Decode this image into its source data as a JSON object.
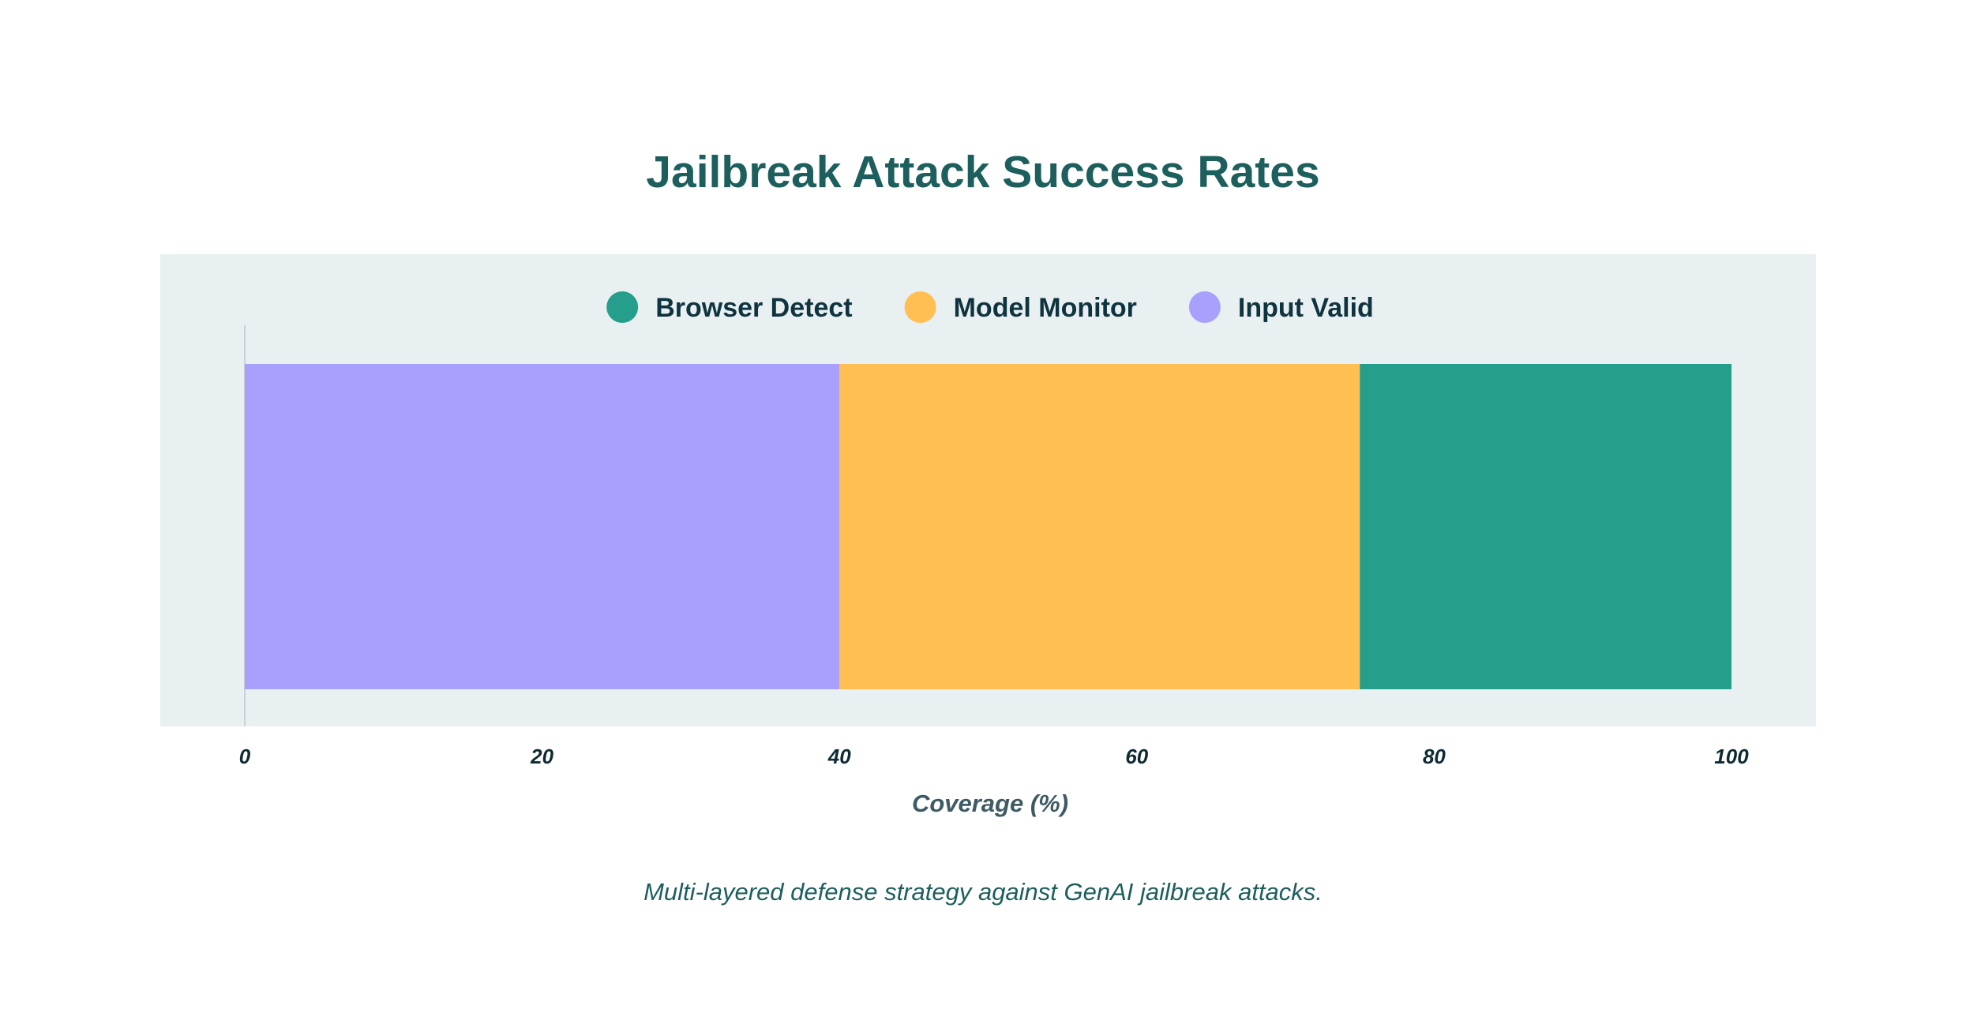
{
  "colors": {
    "title": "#1c5f5c",
    "caption": "#1c5f5c",
    "panel_bg": "#e9f0f1",
    "axis_line": "#c9d2d6",
    "legend_text": "#0f3440",
    "tick_text": "#0f2a33",
    "axis_title": "#3e5a63"
  },
  "caption": "Multi-layered defense strategy against GenAI jailbreak attacks.",
  "chart_data": {
    "type": "bar",
    "orientation": "horizontal",
    "stacked": true,
    "title": "Jailbreak Attack Success Rates",
    "xlabel": "Coverage (%)",
    "ylabel": "",
    "xlim": [
      0,
      100
    ],
    "xticks": [
      0,
      20,
      40,
      60,
      80,
      100
    ],
    "grid": false,
    "legend_position": "top",
    "categories": [
      ""
    ],
    "series": [
      {
        "name": "Input Valid",
        "values": [
          40
        ],
        "color": "#a99ffc"
      },
      {
        "name": "Model Monitor",
        "values": [
          35
        ],
        "color": "#ffbf52"
      },
      {
        "name": "Browser Detect",
        "values": [
          25
        ],
        "color": "#269e8c"
      }
    ],
    "legend_order": [
      "Browser Detect",
      "Model Monitor",
      "Input Valid"
    ]
  }
}
